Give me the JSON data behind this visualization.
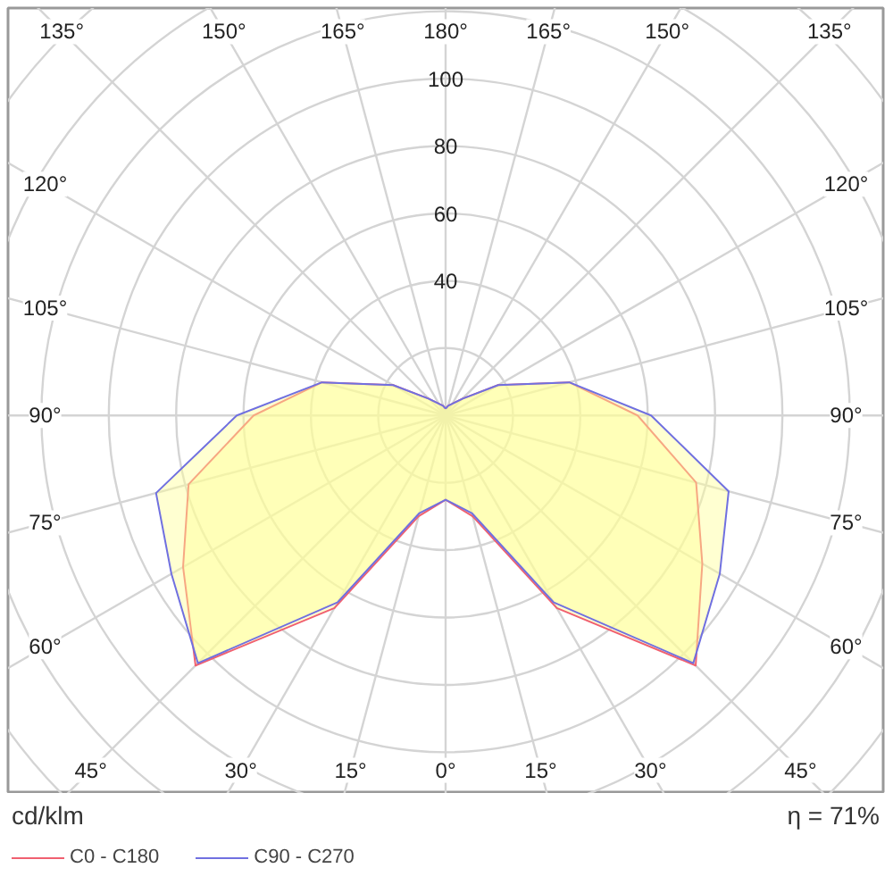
{
  "chart_data": {
    "type": "radar",
    "ylabel": "cd/klm",
    "annotations": [
      "η = 71%"
    ],
    "categories": [
      "180°",
      "165°",
      "150°",
      "135°",
      "120°",
      "105°",
      "90°",
      "75°",
      "60°",
      "45°",
      "30°",
      "15°",
      "0°",
      "15°",
      "30°",
      "45°",
      "60°",
      "75°",
      "90°",
      "105°",
      "120°",
      "135°",
      "150°",
      "165°"
    ],
    "ylim": [
      0,
      180
    ],
    "yticks": [
      40,
      60,
      80,
      100
    ],
    "grid": true,
    "legend": "bottom left",
    "marker": "none",
    "line_style": "solid",
    "series": [
      {
        "name": "C0 - C180",
        "color": "#f06070",
        "values": [
          2,
          3,
          4,
          7,
          18,
          38,
          57,
          77,
          88,
          105,
          66,
          31,
          25,
          31,
          66,
          105,
          90,
          79,
          57,
          38,
          18,
          7,
          4,
          3
        ]
      },
      {
        "name": "C90 - C270",
        "color": "#7070e0",
        "values": [
          2,
          3,
          4,
          7,
          18,
          38,
          61,
          87,
          94,
          104,
          64,
          30,
          25,
          30,
          64,
          104,
          94,
          89,
          62,
          38,
          18,
          7,
          4,
          3
        ]
      }
    ]
  }
}
